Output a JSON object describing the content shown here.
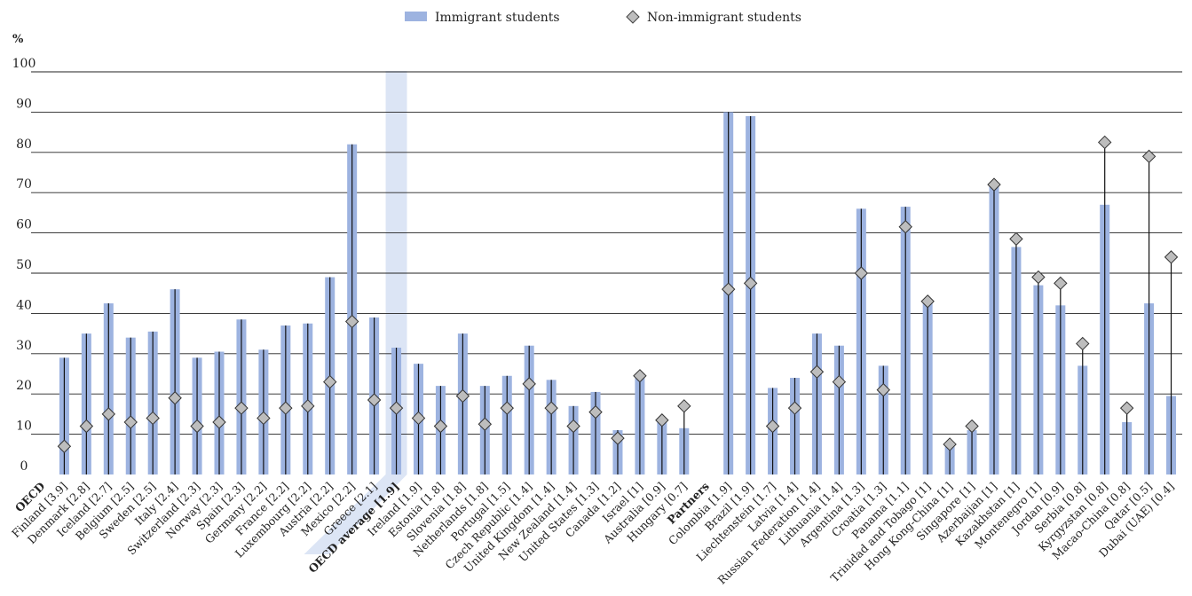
{
  "chart_data": {
    "type": "bar",
    "ylabel": "%",
    "ylim": [
      0,
      100
    ],
    "yticks": [
      0,
      10,
      20,
      30,
      40,
      50,
      60,
      70,
      80,
      90,
      100
    ],
    "grid": true,
    "legend_position": "top-center",
    "colors": {
      "bar": "#9db3e0",
      "marker": "#bdbdbd",
      "highlight": "#dce5f5",
      "oecd_label": "#1f6fbf"
    },
    "legend": [
      {
        "name": "Immigrant students",
        "marker": "bar"
      },
      {
        "name": "Non-immigrant students",
        "marker": "diamond"
      }
    ],
    "categories": [
      {
        "label": "OECD",
        "group_label": true,
        "style": "oecd"
      },
      {
        "label": "Finland [3.9]",
        "immigrant": 29,
        "non_immigrant": 7
      },
      {
        "label": "Denmark [2.8]",
        "immigrant": 35,
        "non_immigrant": 12
      },
      {
        "label": "Iceland [2.7]",
        "immigrant": 42.5,
        "non_immigrant": 15
      },
      {
        "label": "Belgium [2.5]",
        "immigrant": 34,
        "non_immigrant": 13
      },
      {
        "label": "Sweden [2.5]",
        "immigrant": 35.5,
        "non_immigrant": 14
      },
      {
        "label": "Italy [2.4]",
        "immigrant": 46,
        "non_immigrant": 19
      },
      {
        "label": "Switzerland [2.3]",
        "immigrant": 29,
        "non_immigrant": 12
      },
      {
        "label": "Norway [2.3]",
        "immigrant": 30.5,
        "non_immigrant": 13
      },
      {
        "label": "Spain [2.3]",
        "immigrant": 38.5,
        "non_immigrant": 16.5
      },
      {
        "label": "Germany [2.2]",
        "immigrant": 31,
        "non_immigrant": 14
      },
      {
        "label": "France [2.2]",
        "immigrant": 37,
        "non_immigrant": 16.5
      },
      {
        "label": "Luxembourg [2.2]",
        "immigrant": 37.5,
        "non_immigrant": 17
      },
      {
        "label": "Austria [2.2]",
        "immigrant": 49,
        "non_immigrant": 23
      },
      {
        "label": "Mexico [2.2]",
        "immigrant": 82,
        "non_immigrant": 38
      },
      {
        "label": "Greece [2.1]",
        "immigrant": 39,
        "non_immigrant": 18.5
      },
      {
        "label": "OECD average [1.9]",
        "immigrant": 31.5,
        "non_immigrant": 16.5,
        "highlight": true
      },
      {
        "label": "Ireland [1.9]",
        "immigrant": 27.5,
        "non_immigrant": 14
      },
      {
        "label": "Estonia [1.8]",
        "immigrant": 22,
        "non_immigrant": 12
      },
      {
        "label": "Slovenia [1.8]",
        "immigrant": 35,
        "non_immigrant": 19.5
      },
      {
        "label": "Netherlands [1.8]",
        "immigrant": 22,
        "non_immigrant": 12.5
      },
      {
        "label": "Portugal [1.5]",
        "immigrant": 24.5,
        "non_immigrant": 16.5
      },
      {
        "label": "Czech Republic [1.4]",
        "immigrant": 32,
        "non_immigrant": 22.5
      },
      {
        "label": "United Kingdom [1.4]",
        "immigrant": 23.5,
        "non_immigrant": 16.5
      },
      {
        "label": "New Zealand [1.4]",
        "immigrant": 17,
        "non_immigrant": 12
      },
      {
        "label": "United States [1.3]",
        "immigrant": 20.5,
        "non_immigrant": 15.5
      },
      {
        "label": "Canada [1.2]",
        "immigrant": 11,
        "non_immigrant": 9
      },
      {
        "label": "Israel [1]",
        "immigrant": 24,
        "non_immigrant": 24.5
      },
      {
        "label": "Australia [0.9]",
        "immigrant": 13,
        "non_immigrant": 13.5
      },
      {
        "label": "Hungary [0.7]",
        "immigrant": 11.5,
        "non_immigrant": 17
      },
      {
        "label": "Partners",
        "group_label": true,
        "style": "partners"
      },
      {
        "label": "Colombia [1.9]",
        "immigrant": 90,
        "non_immigrant": 46
      },
      {
        "label": "Brazil [1.9]",
        "immigrant": 89,
        "non_immigrant": 47.5
      },
      {
        "label": "Liechtenstein [1.7]",
        "immigrant": 21.5,
        "non_immigrant": 12
      },
      {
        "label": "Latvia [1.4]",
        "immigrant": 24,
        "non_immigrant": 16.5
      },
      {
        "label": "Russian Federation [1.4]",
        "immigrant": 35,
        "non_immigrant": 25.5
      },
      {
        "label": "Lithuania [1.4]",
        "immigrant": 32,
        "non_immigrant": 23
      },
      {
        "label": "Argentina [1.3]",
        "immigrant": 66,
        "non_immigrant": 50
      },
      {
        "label": "Croatia [1.3]",
        "immigrant": 27,
        "non_immigrant": 21
      },
      {
        "label": "Panama [1.1]",
        "immigrant": 66.5,
        "non_immigrant": 61.5
      },
      {
        "label": "Trinidad and Tobago [1]",
        "immigrant": 43,
        "non_immigrant": 43
      },
      {
        "label": "Hong Kong-China [1]",
        "immigrant": 7,
        "non_immigrant": 7.5
      },
      {
        "label": "Singapore [1]",
        "immigrant": 11,
        "non_immigrant": 12
      },
      {
        "label": "Azerbaijan [1]",
        "immigrant": 72,
        "non_immigrant": 72
      },
      {
        "label": "Kazakhstan [1]",
        "immigrant": 56.5,
        "non_immigrant": 58.5
      },
      {
        "label": "Montenegro [1]",
        "immigrant": 47,
        "non_immigrant": 49
      },
      {
        "label": "Jordan [0.9]",
        "immigrant": 42,
        "non_immigrant": 47.5
      },
      {
        "label": "Serbia [0.8]",
        "immigrant": 27,
        "non_immigrant": 32.5
      },
      {
        "label": "Kyrgyzstan [0.8]",
        "immigrant": 67,
        "non_immigrant": 82.5
      },
      {
        "label": "Macao-China [0.8]",
        "immigrant": 13,
        "non_immigrant": 16.5
      },
      {
        "label": "Qatar [0.5]",
        "immigrant": 42.5,
        "non_immigrant": 79
      },
      {
        "label": "Dubai (UAE) [0.4]",
        "immigrant": 19.5,
        "non_immigrant": 54
      }
    ]
  }
}
